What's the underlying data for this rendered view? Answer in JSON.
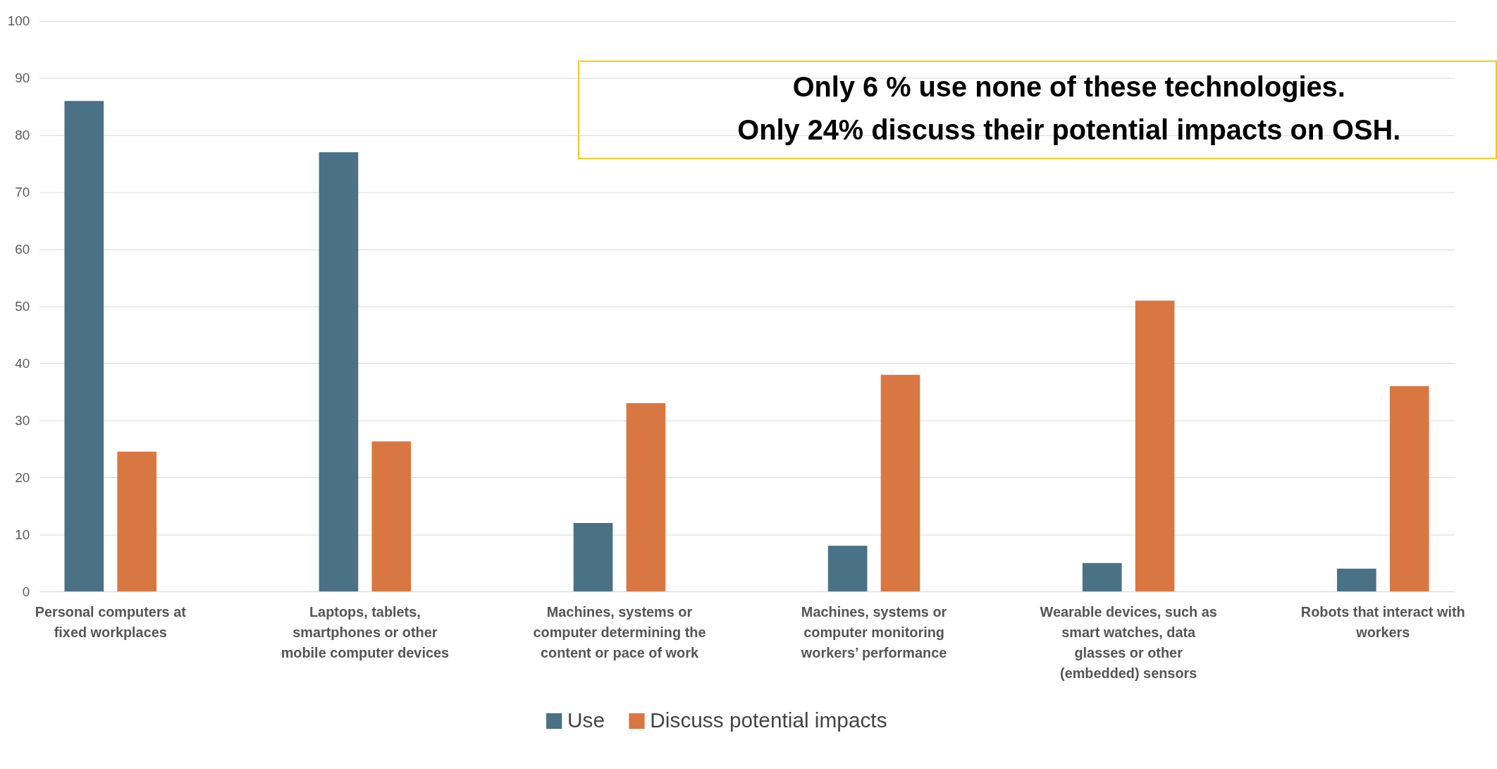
{
  "chart_data": {
    "type": "bar",
    "categories": [
      "Personal computers at fixed workplaces",
      "Laptops, tablets, smartphones or other mobile computer devices",
      "Machines, systems or computer determining the content or pace of work",
      "Machines, systems or computer monitoring workers’ performance",
      "Wearable devices, such as smart watches, data glasses or other (embedded) sensors",
      "Robots that interact with workers"
    ],
    "series": [
      {
        "name": "Use",
        "color": "#4a7185",
        "values": [
          86,
          77,
          12,
          8,
          5,
          4
        ]
      },
      {
        "name": "Discuss potential impacts",
        "color": "#d97742",
        "values": [
          24.5,
          26.3,
          33,
          38,
          51,
          36
        ]
      }
    ],
    "ylim": [
      0,
      100
    ],
    "yticks": [
      0,
      10,
      20,
      30,
      40,
      50,
      60,
      70,
      80,
      90,
      100
    ],
    "grid": "y",
    "legend": "bottom",
    "annotations": [
      "Only 6 % use none of these technologies.",
      "Only 24% discuss their potential impacts on OSH."
    ]
  }
}
